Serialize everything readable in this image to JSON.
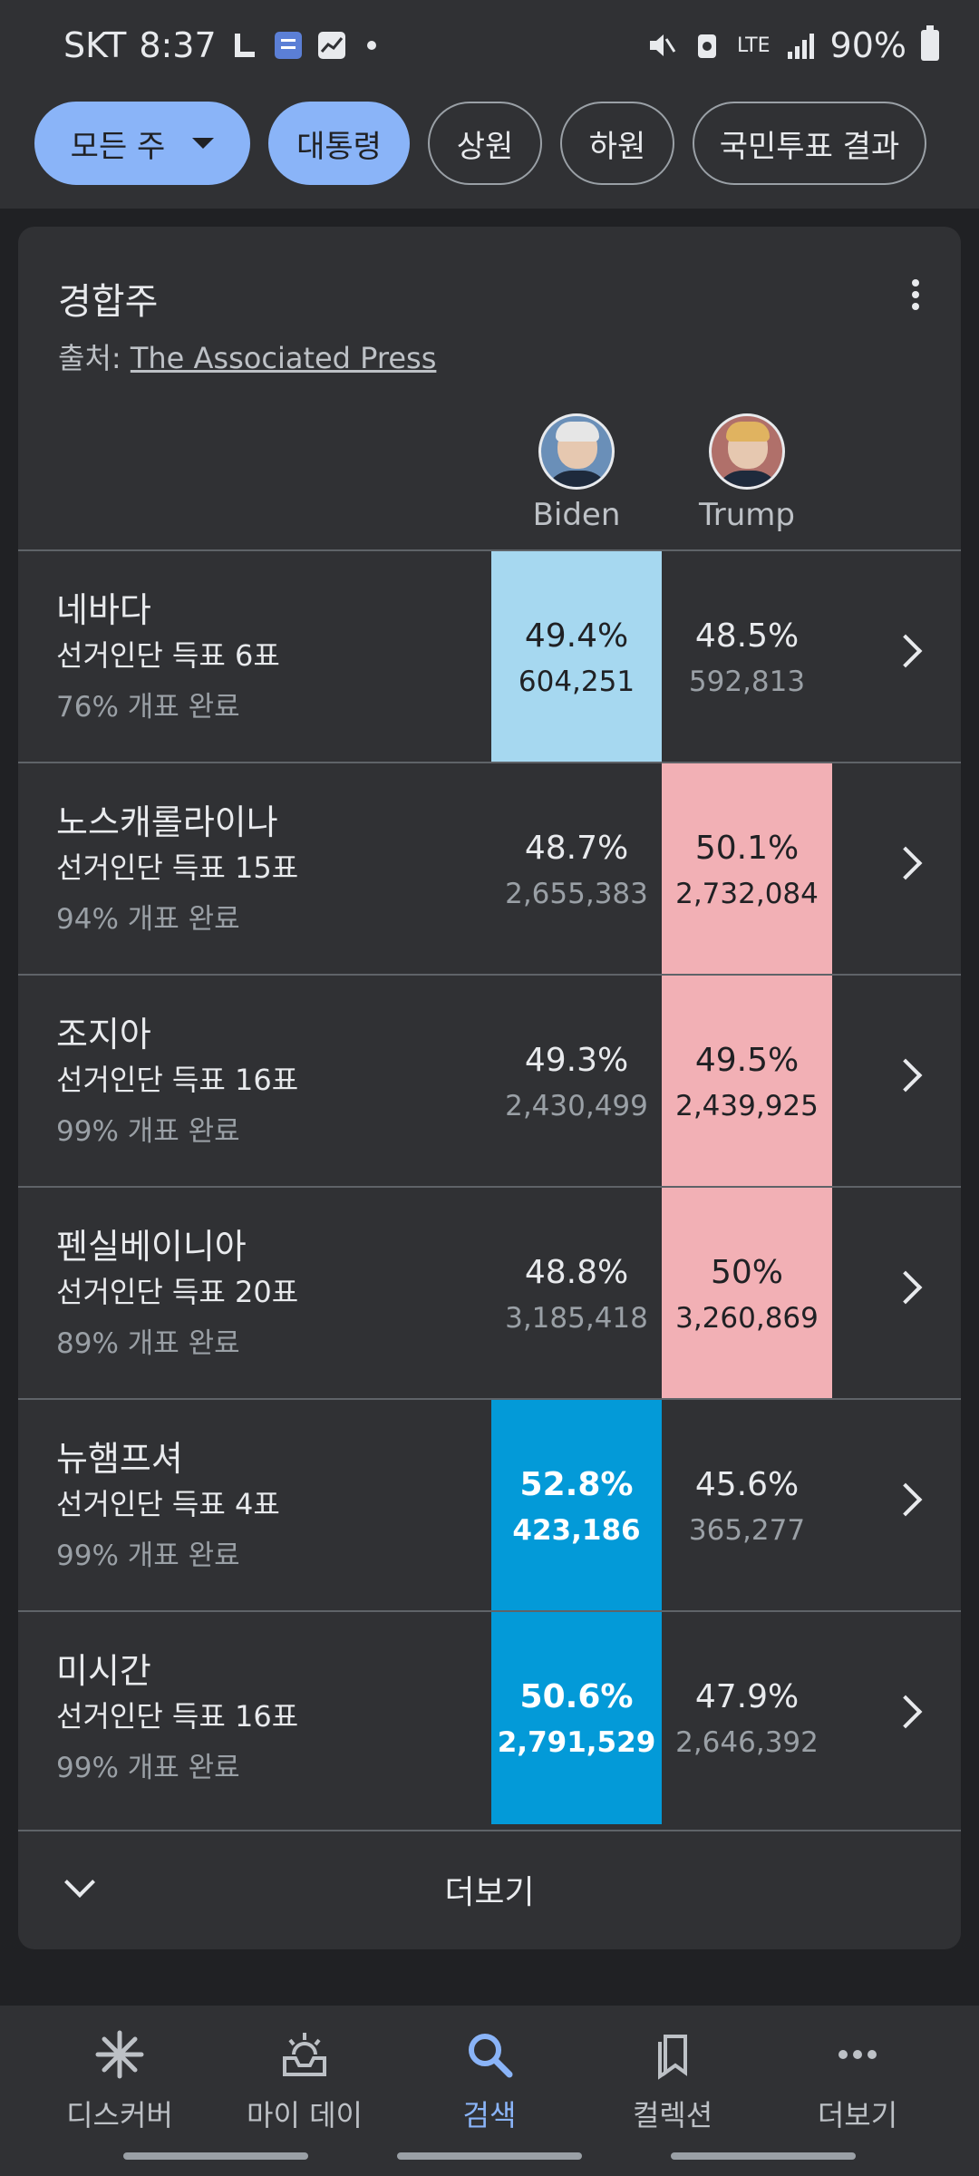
{
  "status_bar": {
    "carrier": "SKT",
    "time": "8:37",
    "network": "LTE",
    "battery": "90%"
  },
  "chips": [
    {
      "label": "모든 주"
    },
    {
      "label": "대통령"
    },
    {
      "label": "상원"
    },
    {
      "label": "하원"
    },
    {
      "label": "국민투표 결과"
    }
  ],
  "card": {
    "title": "경합주",
    "source_prefix": "출처:",
    "source_link": "The Associated Press",
    "candidates": [
      {
        "name": "Biden"
      },
      {
        "name": "Trump"
      }
    ],
    "rows": [
      {
        "state": "네바다",
        "electoral": "선거인단 득표 6표",
        "reporting": "76% 개표 완료",
        "biden_pct": "49.4%",
        "biden_votes": "604,251",
        "trump_pct": "48.5%",
        "trump_votes": "592,813"
      },
      {
        "state": "노스캐롤라이나",
        "electoral": "선거인단 득표 15표",
        "reporting": "94% 개표 완료",
        "biden_pct": "48.7%",
        "biden_votes": "2,655,383",
        "trump_pct": "50.1%",
        "trump_votes": "2,732,084"
      },
      {
        "state": "조지아",
        "electoral": "선거인단 득표 16표",
        "reporting": "99% 개표 완료",
        "biden_pct": "49.3%",
        "biden_votes": "2,430,499",
        "trump_pct": "49.5%",
        "trump_votes": "2,439,925"
      },
      {
        "state": "펜실베이니아",
        "electoral": "선거인단 득표 20표",
        "reporting": "89% 개표 완료",
        "biden_pct": "48.8%",
        "biden_votes": "3,185,418",
        "trump_pct": "50%",
        "trump_votes": "3,260,869"
      },
      {
        "state": "뉴햄프셔",
        "electoral": "선거인단 득표 4표",
        "reporting": "99% 개표 완료",
        "biden_pct": "52.8%",
        "biden_votes": "423,186",
        "trump_pct": "45.6%",
        "trump_votes": "365,277"
      },
      {
        "state": "미시간",
        "electoral": "선거인단 득표 16표",
        "reporting": "99% 개표 완료",
        "biden_pct": "50.6%",
        "biden_votes": "2,791,529",
        "trump_pct": "47.9%",
        "trump_votes": "2,646,392"
      }
    ],
    "more_label": "더보기"
  },
  "bottom_nav": [
    {
      "label": "디스커버"
    },
    {
      "label": "마이 데이"
    },
    {
      "label": "검색"
    },
    {
      "label": "컬렉션"
    },
    {
      "label": "더보기"
    }
  ],
  "colors": {
    "biden_leading": "#a6d8f0",
    "biden_called": "#039ad8",
    "trump_leading": "#f2b0b5",
    "accent": "#8ab4f8"
  }
}
